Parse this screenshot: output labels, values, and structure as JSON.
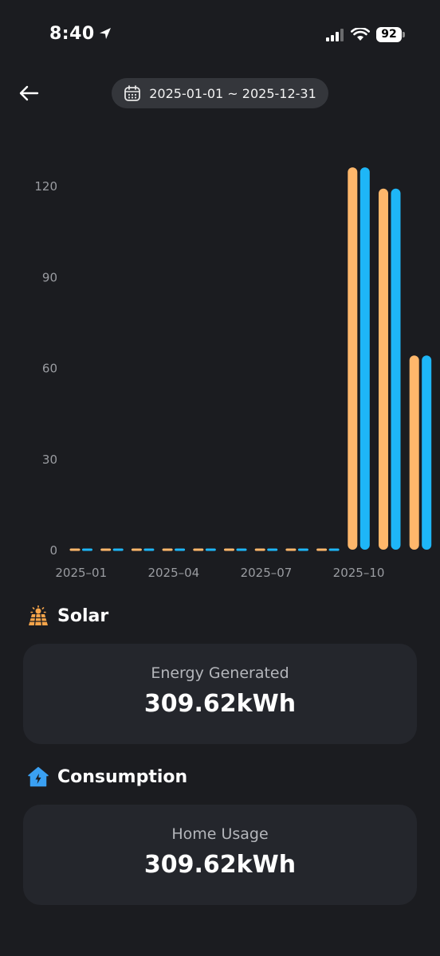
{
  "status_bar": {
    "time": "8:40",
    "battery": "92"
  },
  "header": {
    "date_range": "2025-01-01 ~ 2025-12-31"
  },
  "chart_data": {
    "type": "bar",
    "categories": [
      "2025-01",
      "2025-02",
      "2025-03",
      "2025-04",
      "2025-05",
      "2025-06",
      "2025-07",
      "2025-08",
      "2025-09",
      "2025-10",
      "2025-11",
      "2025-12"
    ],
    "tick_labels": [
      "2025–01",
      "2025–04",
      "2025–07",
      "2025–10"
    ],
    "yticks": [
      "0",
      "30",
      "60",
      "90",
      "120"
    ],
    "ylim": [
      0,
      130
    ],
    "grid": false,
    "legend": "none",
    "series": [
      {
        "values": [
          0,
          0,
          0,
          0,
          0,
          0,
          0,
          0,
          0,
          126,
          119,
          64
        ],
        "color": "#ffb76b"
      },
      {
        "values": [
          0,
          0,
          0,
          0,
          0,
          0,
          0,
          0,
          0,
          126,
          119,
          64
        ],
        "color": "#1eb6f7"
      }
    ]
  },
  "solar": {
    "title": "Solar",
    "label": "Energy Generated",
    "value": "309.62kWh",
    "icon": "solar-panel-icon",
    "icon_color": "#f7a54a"
  },
  "consumption": {
    "title": "Consumption",
    "label": "Home Usage",
    "value": "309.62kWh",
    "icon": "home-icon",
    "icon_color": "#3aa0f2"
  }
}
